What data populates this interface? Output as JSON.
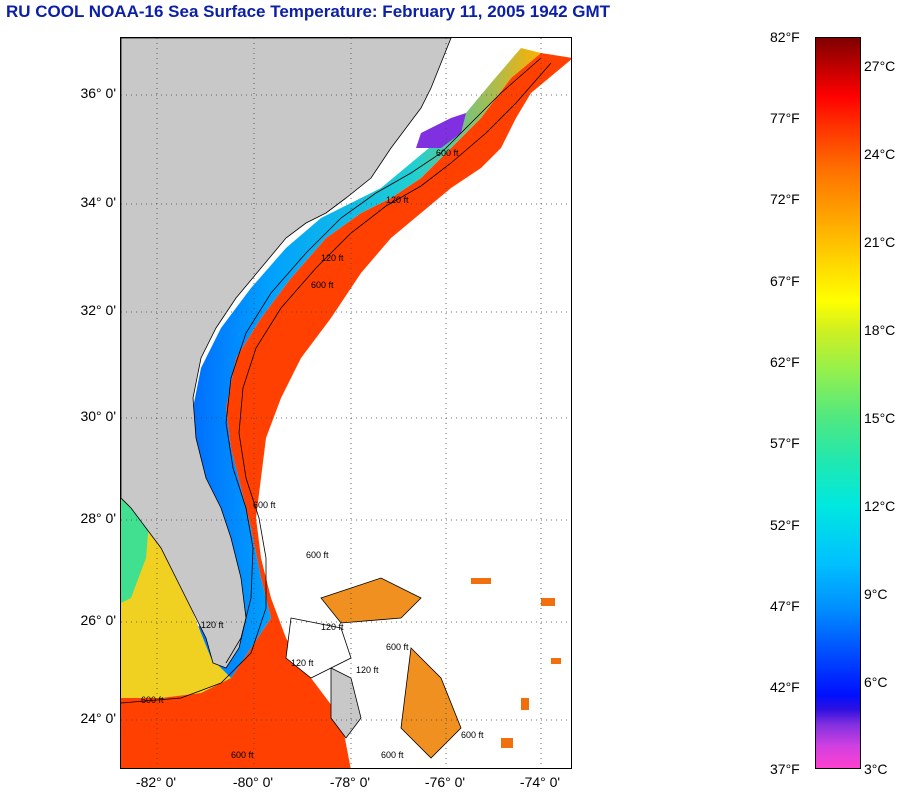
{
  "title": "RU COOL  NOAA-16  Sea Surface Temperature:  February 11, 2005 1942 GMT",
  "map": {
    "latitude_labels": [
      "36° 0'",
      "34° 0'",
      "32° 0'",
      "30° 0'",
      "28° 0'",
      "26° 0'",
      "24° 0'"
    ],
    "longitude_labels": [
      "-82° 0'",
      "-80° 0'",
      "-78° 0'",
      "-76° 0'",
      "-74° 0'"
    ],
    "contour_labels": [
      "600 ft",
      "120 ft",
      "120 ft",
      "600 ft",
      "600 ft",
      "120 ft",
      "600 ft",
      "600 ft",
      "120 ft",
      "600 ft",
      "120 ft",
      "120 ft",
      "600 ft",
      "600 ft",
      "600 ft"
    ],
    "colors": {
      "land": "#c8c8c8",
      "no_data": "#ffffff",
      "grid": "#444444"
    }
  },
  "colorbar": {
    "fahrenheit_labels": [
      "82°F",
      "77°F",
      "72°F",
      "67°F",
      "62°F",
      "57°F",
      "52°F",
      "47°F",
      "42°F",
      "37°F"
    ],
    "celsius_labels": [
      "27°C",
      "24°C",
      "21°C",
      "18°C",
      "15°C",
      "12°C",
      "9°C",
      "6°C",
      "3°C"
    ]
  }
}
